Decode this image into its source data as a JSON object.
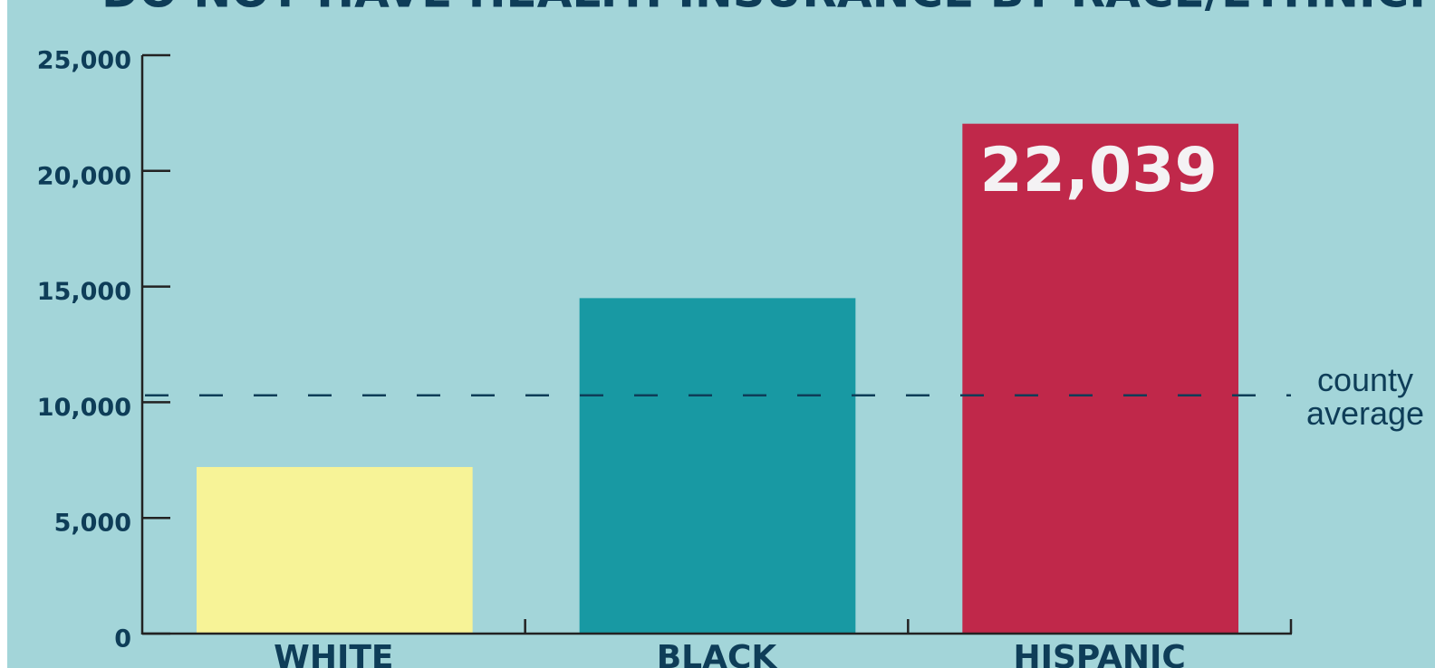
{
  "chart_data": {
    "type": "bar",
    "title": "DO NOT HAVE HEALTH INSURANCE BY RACE/ETHNICITY",
    "categories": [
      "WHITE",
      "BLACK",
      "HISPANIC"
    ],
    "values": [
      7200,
      14500,
      22039
    ],
    "value_labels": [
      null,
      null,
      "22,039"
    ],
    "colors": [
      "#f7f397",
      "#1899a3",
      "#c0284a"
    ],
    "ylim": [
      0,
      25000
    ],
    "yticks": [
      0,
      {
        "value": 5000,
        "label": "5,000"
      },
      {
        "value": 10000,
        "label": "10,000"
      },
      {
        "value": 15000,
        "label": "15,000"
      },
      {
        "value": 20000,
        "label": "20,000"
      },
      {
        "value": 25000,
        "label": "25,000"
      }
    ],
    "reference_line": {
      "value": 10300,
      "label": "county average"
    }
  }
}
